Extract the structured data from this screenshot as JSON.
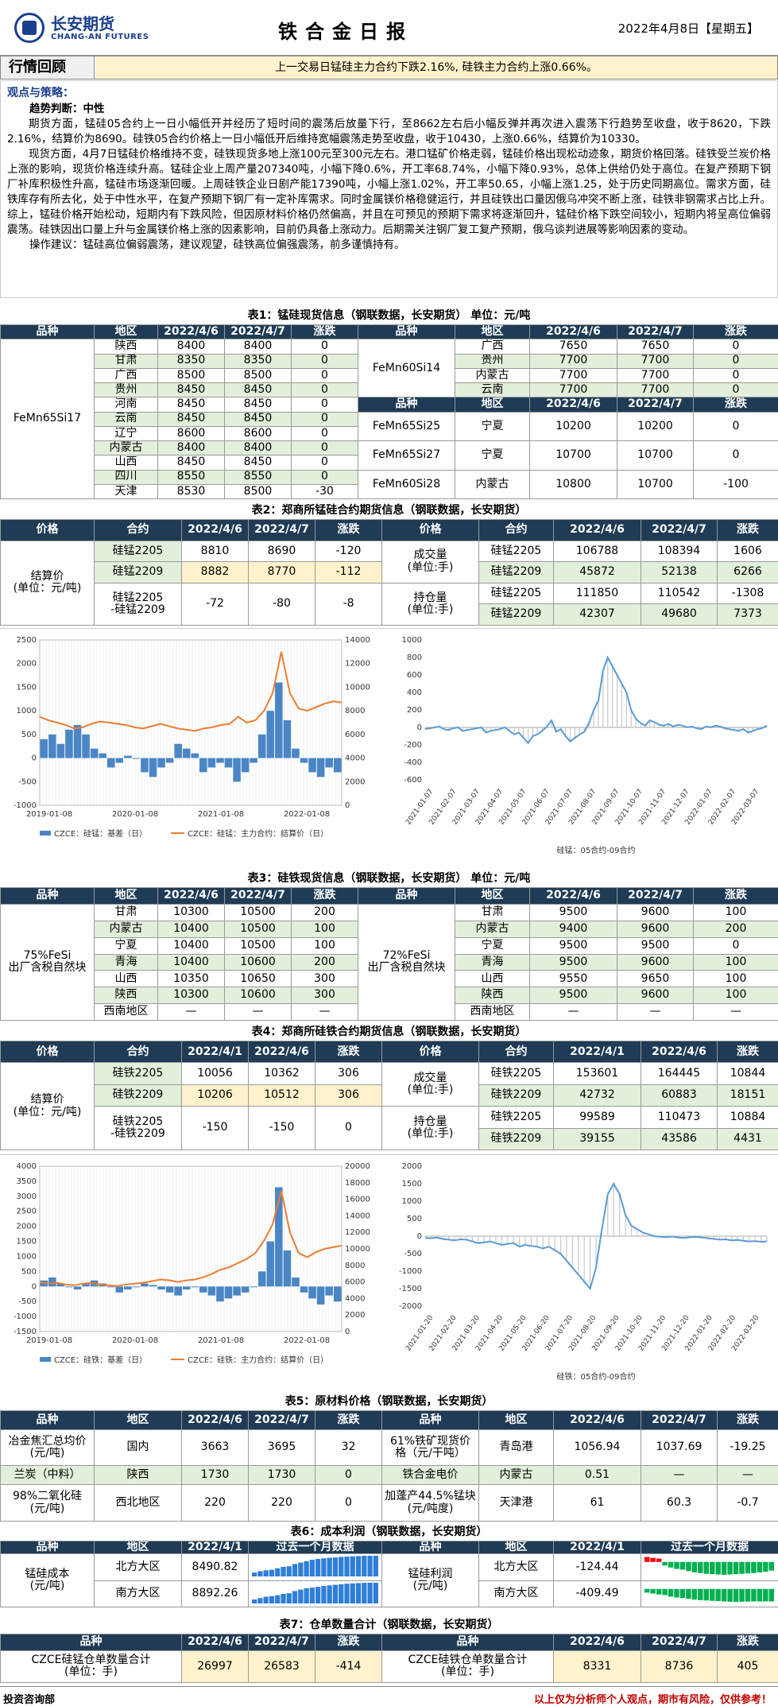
{
  "header": {
    "logo_cn": "长安期货",
    "logo_en": "CHANG-AN FUTURES",
    "title": "铁合金日报",
    "date": "2022年4月8日【星期五】"
  },
  "review": {
    "label": "行情回顾",
    "text": "上一交易日锰硅主力合约下跌2.16%, 硅铁主力合约上涨0.66%。"
  },
  "view": {
    "heading": "观点与策略：",
    "trend": "趋势判断：中性",
    "p1": "期货方面，锰硅05合约上一日小幅低开并经历了短时间的震荡后放量下行，至8662左右后小幅反弹并再次进入震荡下行趋势至收盘，收于8620，下跌2.16%，结算价为8690。硅铁05合约价格上一日小幅低开后维持宽幅震荡走势至收盘，收于10430，上涨0.66%，结算价为10330。",
    "p2": "现货方面，4月7日锰硅价格维持不变，硅铁现货多地上涨100元至300元左右。港口锰矿价格走弱，锰硅价格出现松动迹象，期货价格回落。硅铁受兰炭价格上涨的影响，现货价格连续升高。锰硅企业上周产量207340吨，小幅下降0.6%，开工率68.74%，小幅下降0.93%，总体上供给仍处于高位。在复产预期下钢厂补库积极性升高，锰硅市场逐渐回暖。上周硅铁企业日剧产能17390吨，小幅上涨1.02%，开工率50.65，小幅上涨1.25，处于历史同期高位。需求方面，硅铁库存有所去化，处于中性水平，在复产预期下钢厂有一定补库需求。同时金属镁价格稳健运行，并且硅铁出口量因俄乌冲突不断上涨，硅铁非钢需求占比上升。综上，锰硅价格开始松动，短期内有下跌风险，但因原材料价格仍然偏高，并且在可预见的预期下需求将逐渐回升，锰硅价格下跌空间较小，短期内将呈高位偏弱震荡。硅铁因出口量上升与金属镁价格上涨的因素影响，目前仍具备上涨动力。后期需关注钢厂复工复产预期，俄乌谈判进展等影响因素的变动。",
    "op": "操作建议：锰硅高位偏弱震荡，建议观望，硅铁高位偏强震荡，前多谨慎持有。"
  },
  "t1": {
    "caption": "表1：锰硅现货信息（钢联数据，长安期货） 单位：元/吨",
    "headers": [
      "品种",
      "地区",
      "2022/4/6",
      "2022/4/7",
      "涨跌"
    ],
    "left_product": "FeMn65Si17",
    "left_rows": [
      [
        "陕西",
        "8400",
        "8400",
        "0"
      ],
      [
        "甘肃",
        "8350",
        "8350",
        "0"
      ],
      [
        "广西",
        "8500",
        "8500",
        "0"
      ],
      [
        "贵州",
        "8450",
        "8450",
        "0"
      ],
      [
        "河南",
        "8450",
        "8450",
        "0"
      ],
      [
        "云南",
        "8450",
        "8450",
        "0"
      ],
      [
        "辽宁",
        "8600",
        "8600",
        "0"
      ],
      [
        "内蒙古",
        "8400",
        "8400",
        "0"
      ],
      [
        "山西",
        "8450",
        "8450",
        "0"
      ],
      [
        "四川",
        "8550",
        "8550",
        "0"
      ],
      [
        "天津",
        "8530",
        "8500",
        "-30"
      ]
    ],
    "r_product1": "FeMn60Si14",
    "r_rows1": [
      [
        "广西",
        "7650",
        "7650",
        "0"
      ],
      [
        "贵州",
        "7700",
        "7700",
        "0"
      ],
      [
        "内蒙古",
        "7700",
        "7700",
        "0"
      ],
      [
        "云南",
        "7700",
        "7700",
        "0"
      ]
    ],
    "r_rows2": [
      [
        "FeMn65Si25",
        "宁夏",
        "10200",
        "10200",
        "0"
      ],
      [
        "FeMn65Si27",
        "宁夏",
        "10700",
        "10700",
        "0"
      ],
      [
        "FeMn60Si28",
        "内蒙古",
        "10800",
        "10700",
        "-100"
      ]
    ]
  },
  "t2": {
    "caption": "表2：郑商所锰硅合约期货信息（钢联数据，长安期货）",
    "headers": [
      "价格",
      "合约",
      "2022/4/6",
      "2022/4/7",
      "涨跌"
    ],
    "left_label": "结算价\n(单位：元/吨)",
    "left_rows": [
      [
        "硅锰2205",
        "8810",
        "8690",
        "-120"
      ],
      [
        "硅锰2209",
        "8882",
        "8770",
        "-112"
      ],
      [
        "硅锰2205\n-硅锰2209",
        "-72",
        "-80",
        "-8"
      ]
    ],
    "vol_label": "成交量\n(单位:手)",
    "vol_rows": [
      [
        "硅锰2205",
        "106788",
        "108394",
        "1606"
      ],
      [
        "硅锰2209",
        "45872",
        "52138",
        "6266"
      ]
    ],
    "oi_label": "持仓量\n(单位:手)",
    "oi_rows": [
      [
        "硅锰2205",
        "111850",
        "110542",
        "-1308"
      ],
      [
        "硅锰2209",
        "42307",
        "49680",
        "7373"
      ]
    ]
  },
  "chart1": {
    "type": "line",
    "left_ticks": [
      "2500",
      "2000",
      "1500",
      "1000",
      "500",
      "0",
      "-500",
      "-1000"
    ],
    "right_ticks": [
      "14000",
      "12000",
      "10000",
      "8000",
      "6000",
      "4000",
      "2000",
      "0"
    ],
    "x_ticks": [
      "2019-01-08",
      "2020-01-08",
      "2021-01-08",
      "2022-01-08"
    ],
    "legend": [
      "CZCE：硅锰：基差（日）",
      "CZCE：硅锰：主力合约：结算价（日）"
    ],
    "series": [
      {
        "name": "CZCE：硅锰：基差（日）",
        "axis": "left",
        "color": "#4a86c5",
        "y": [
          400,
          500,
          300,
          600,
          700,
          500,
          200,
          100,
          -200,
          -100,
          50,
          0,
          -300,
          -400,
          -200,
          -100,
          300,
          200,
          100,
          -300,
          -200,
          -100,
          -200,
          -500,
          -300,
          -100,
          500,
          1000,
          1600,
          800,
          200,
          -100,
          -300,
          -400,
          -200,
          -300
        ]
      },
      {
        "name": "CZCE：硅锰：主力合约：结算价（日）",
        "axis": "right",
        "color": "#ed7d31",
        "y": [
          7500,
          7200,
          7000,
          6800,
          6500,
          6600,
          6900,
          7100,
          7000,
          6900,
          6800,
          6600,
          6500,
          6700,
          6900,
          6700,
          6500,
          6400,
          6300,
          6500,
          6600,
          6800,
          6900,
          7500,
          7000,
          7200,
          8000,
          9500,
          13000,
          9500,
          8200,
          8000,
          8300,
          8600,
          8800,
          8700
        ]
      }
    ]
  },
  "chart2": {
    "type": "line",
    "y_ticks": [
      "1000",
      "800",
      "600",
      "400",
      "200",
      "0",
      "-200",
      "-400",
      "-600"
    ],
    "x_ticks": [
      "2021-01-07",
      "2021-02-07",
      "2021-03-07",
      "2021-04-07",
      "2021-05-07",
      "2021-06-07",
      "2021-07-07",
      "2021-08-07",
      "2021-09-07",
      "2021-10-07",
      "2021-11-07",
      "2021-12-07",
      "2022-01-07",
      "2022-02-07",
      "2022-03-07"
    ],
    "series_name": "硅锰：05合约-09合约",
    "y": [
      -20,
      -10,
      0,
      10,
      -20,
      -30,
      -10,
      0,
      -40,
      -30,
      -20,
      -10,
      0,
      -60,
      -40,
      -30,
      -20,
      0,
      -40,
      -80,
      -60,
      -120,
      -180,
      -100,
      -80,
      -40,
      10,
      80,
      -50,
      -20,
      -100,
      -160,
      -120,
      -80,
      -50,
      50,
      200,
      300,
      650,
      800,
      700,
      600,
      500,
      400,
      200,
      100,
      50,
      20,
      80,
      60,
      30,
      20,
      40,
      10,
      30,
      20,
      0,
      10,
      -10,
      -20,
      10,
      0,
      20,
      10,
      -10,
      -20,
      -30,
      -40,
      -20,
      -60,
      -40,
      -20,
      -10,
      20
    ]
  },
  "t3": {
    "caption": "表3：硅铁现货信息（钢联数据，长安期货） 单位：元/吨",
    "headers": [
      "品种",
      "地区",
      "2022/4/6",
      "2022/4/7",
      "涨跌"
    ],
    "left_product": "75%FeSi\n出厂含税自然块",
    "left_rows": [
      [
        "甘肃",
        "10300",
        "10500",
        "200"
      ],
      [
        "内蒙古",
        "10400",
        "10500",
        "100"
      ],
      [
        "宁夏",
        "10400",
        "10500",
        "100"
      ],
      [
        "青海",
        "10400",
        "10600",
        "200"
      ],
      [
        "山西",
        "10350",
        "10650",
        "300"
      ],
      [
        "陕西",
        "10300",
        "10600",
        "300"
      ],
      [
        "西南地区",
        "—",
        "—",
        "—"
      ]
    ],
    "right_product": "72%FeSi\n出厂含税自然块",
    "right_rows": [
      [
        "甘肃",
        "9500",
        "9600",
        "100"
      ],
      [
        "内蒙古",
        "9400",
        "9600",
        "200"
      ],
      [
        "宁夏",
        "9500",
        "9500",
        "0"
      ],
      [
        "青海",
        "9500",
        "9600",
        "100"
      ],
      [
        "山西",
        "9550",
        "9650",
        "100"
      ],
      [
        "陕西",
        "9500",
        "9600",
        "100"
      ],
      [
        "西南地区",
        "—",
        "—",
        "—"
      ]
    ]
  },
  "t4": {
    "caption": "表4：郑商所硅铁合约期货信息（钢联数据，长安期货）",
    "headers": [
      "价格",
      "合约",
      "2022/4/1",
      "2022/4/6",
      "涨跌"
    ],
    "left_label": "结算价\n(单位：元/吨)",
    "left_rows": [
      [
        "硅铁2205",
        "10056",
        "10362",
        "306"
      ],
      [
        "硅铁2209",
        "10206",
        "10512",
        "306"
      ],
      [
        "硅铁2205\n-硅铁2209",
        "-150",
        "-150",
        "0"
      ]
    ],
    "vol_label": "成交量\n(单位:手)",
    "vol_rows": [
      [
        "硅铁2205",
        "153601",
        "164445",
        "10844"
      ],
      [
        "硅铁2209",
        "42732",
        "60883",
        "18151"
      ]
    ],
    "oi_label": "持仓量\n(单位:手)",
    "oi_rows": [
      [
        "硅铁2205",
        "99589",
        "110473",
        "10884"
      ],
      [
        "硅铁2209",
        "39155",
        "43586",
        "4431"
      ]
    ]
  },
  "chart3": {
    "type": "line",
    "left_ticks": [
      "4000",
      "3500",
      "3000",
      "2500",
      "2000",
      "1500",
      "1000",
      "500",
      "0",
      "-500",
      "-1000",
      "-1500"
    ],
    "right_ticks": [
      "20000",
      "18000",
      "16000",
      "14000",
      "12000",
      "10000",
      "8000",
      "6000",
      "4000",
      "2000",
      "0"
    ],
    "x_ticks": [
      "2019-01-08",
      "2020-01-08",
      "2021-01-08",
      "2022-01-08"
    ],
    "legend": [
      "CZCE：硅铁：基差（日）",
      "CZCE：硅铁：主力合约：结算价（日）"
    ],
    "series": [
      {
        "name": "CZCE：硅铁：基差（日）",
        "axis": "left",
        "color": "#4a86c5",
        "y": [
          200,
          300,
          100,
          0,
          -100,
          100,
          200,
          100,
          0,
          -200,
          -100,
          0,
          100,
          50,
          -100,
          -200,
          -300,
          -100,
          0,
          -200,
          -300,
          -500,
          -400,
          -300,
          -200,
          0,
          500,
          1500,
          3300,
          1200,
          300,
          -200,
          -400,
          -600,
          -300,
          -500
        ]
      },
      {
        "name": "CZCE：硅铁：主力合约：结算价（日）",
        "axis": "right",
        "color": "#ed7d31",
        "y": [
          6000,
          5800,
          5900,
          5700,
          5600,
          5800,
          5900,
          5700,
          5600,
          5500,
          5700,
          5800,
          5900,
          6100,
          6300,
          6200,
          6000,
          6200,
          6300,
          6600,
          7000,
          7500,
          7800,
          8300,
          8800,
          9500,
          11000,
          13000,
          17000,
          12000,
          9500,
          9000,
          9600,
          10000,
          10200,
          10400
        ]
      }
    ]
  },
  "chart4": {
    "type": "line",
    "y_ticks": [
      "2000",
      "1500",
      "1000",
      "500",
      "0",
      "-500",
      "-1000",
      "-1500",
      "-2000"
    ],
    "x_ticks": [
      "2021-01-20",
      "2021-02-20",
      "2021-03-20",
      "2021-04-20",
      "2021-05-20",
      "2021-06-20",
      "2021-07-20",
      "2021-08-20",
      "2021-09-20",
      "2021-10-20",
      "2021-11-20",
      "2021-12-20",
      "2022-01-20",
      "2022-02-20",
      "2022-03-20"
    ],
    "series_name": "硅铁：05合约-09合约",
    "y": [
      -50,
      -60,
      -40,
      -80,
      -100,
      -120,
      -90,
      -100,
      -150,
      -200,
      -180,
      -150,
      -200,
      -250,
      -220,
      -200,
      -300,
      -250,
      -280,
      -300,
      -350,
      -300,
      -400,
      -500,
      -700,
      -900,
      -1100,
      -1300,
      -1500,
      -900,
      200,
      1200,
      1500,
      1200,
      600,
      300,
      200,
      100,
      50,
      0,
      -20,
      -30,
      -10,
      -40,
      -50,
      -30,
      -20,
      -40,
      -60,
      -80,
      -100,
      -90,
      -120,
      -110,
      -130,
      -150,
      -140,
      -160,
      -150
    ]
  },
  "t5": {
    "caption": "表5：原材料价格（钢联数据，长安期货）",
    "headers": [
      "品种",
      "地区",
      "2022/4/6",
      "2022/4/7",
      "涨跌"
    ],
    "left_rows": [
      [
        "冶金焦汇总均价\n(元/吨)",
        "国内",
        "3663",
        "3695",
        "32"
      ],
      [
        "兰炭（中料）",
        "陕西",
        "1730",
        "1730",
        "0"
      ],
      [
        "98%二氧化硅\n(元/吨)",
        "西北地区",
        "220",
        "220",
        "0"
      ]
    ],
    "right_rows": [
      [
        "61%铁矿现货价\n格（元/干吨）",
        "青岛港",
        "1056.94",
        "1037.69",
        "-19.25"
      ],
      [
        "铁合金电价",
        "内蒙古",
        "0.51",
        "—",
        "—"
      ],
      [
        "加蓬产44.5%锰块\n(元/吨度)",
        "天津港",
        "61",
        "60.3",
        "-0.7"
      ]
    ]
  },
  "t6": {
    "caption": "表6：成本利润（钢联数据，长安期货）",
    "headers": [
      "品种",
      "地区",
      "2022/4/1",
      "过去一个月数据"
    ],
    "left_label": "锰硅成本\n(元/吨)",
    "left_rows": [
      [
        "北方大区",
        "8490.82"
      ],
      [
        "南方大区",
        "8892.26"
      ]
    ],
    "right_label": "锰硅利润\n(元/吨)",
    "right_rows": [
      [
        "北方大区",
        "-124.44"
      ],
      [
        "南方大区",
        "-409.49"
      ]
    ],
    "spark_cost_north": [
      7900,
      7950,
      7980,
      8000,
      8050,
      8100,
      8120,
      8200,
      8250,
      8300,
      8350,
      8380,
      8400,
      8420,
      8430,
      8450,
      8460,
      8470,
      8480,
      8490,
      8490,
      8491
    ],
    "spark_cost_south": [
      8300,
      8350,
      8400,
      8420,
      8450,
      8500,
      8520,
      8600,
      8650,
      8700,
      8720,
      8750,
      8780,
      8800,
      8820,
      8840,
      8860,
      8870,
      8880,
      8890,
      8892,
      8892
    ],
    "spark_profit_north": [
      150,
      120,
      100,
      -50,
      -80,
      -100,
      -110,
      -130,
      -150,
      -160,
      -170,
      -175,
      -180,
      -185,
      -180,
      -175,
      -170,
      -165,
      -160,
      -150,
      -140,
      -124
    ],
    "spark_profit_south": [
      -120,
      -150,
      -180,
      -200,
      -250,
      -280,
      -300,
      -320,
      -350,
      -370,
      -380,
      -390,
      -400,
      -410,
      -420,
      -425,
      -420,
      -415,
      -410,
      -412,
      -410,
      -409
    ]
  },
  "t7": {
    "caption": "表7：仓单数量合计（钢联数据，长安期货）",
    "headers": [
      "品种",
      "2022/4/6",
      "2022/4/7",
      "涨跌",
      "品种",
      "2022/4/6",
      "2022/4/7",
      "涨跌"
    ],
    "left": [
      "CZCE硅锰仓单数量合计\n(单位：手)",
      "26997",
      "26583",
      "-414"
    ],
    "right": [
      "CZCE硅铁仓单数量合计\n(单位：手)",
      "8331",
      "8736",
      "405"
    ]
  },
  "footer": {
    "left": "投资咨询部",
    "right": "以上仅为分析师个人观点，期市有风险，仅供参考！"
  }
}
